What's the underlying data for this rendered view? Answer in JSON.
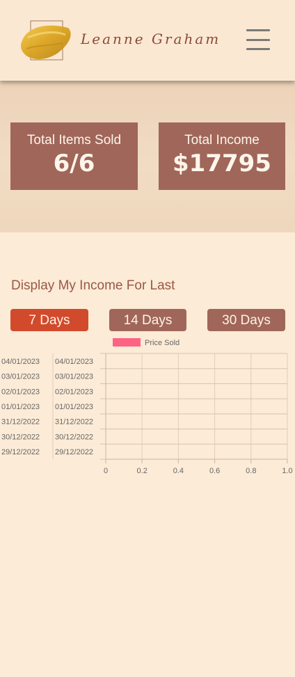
{
  "header": {
    "brand_name": "Leanne Graham",
    "menu_icon": "hamburger-menu-icon"
  },
  "stats": {
    "items_sold_label": "Total Items Sold",
    "items_sold_value": "6/6",
    "income_label": "Total Income",
    "income_value": "$17795"
  },
  "income_section": {
    "title": "Display My Income For Last",
    "buttons": [
      "7 Days",
      "14 Days",
      "30 Days"
    ],
    "active": "7 Days"
  },
  "colors": {
    "background": "#fcebd6",
    "card": "#a0665a",
    "active_button": "#d24a2c",
    "series": "#ff6384"
  },
  "chart_data": {
    "type": "bar",
    "orientation": "horizontal",
    "categories": [
      "04/01/2023",
      "03/01/2023",
      "02/01/2023",
      "01/01/2023",
      "31/12/2022",
      "30/12/2022",
      "29/12/2022"
    ],
    "series": [
      {
        "name": "Price Sold",
        "values": [
          0,
          0,
          0,
          0,
          0,
          0,
          0
        ]
      }
    ],
    "xticks": [
      "0",
      "0.2",
      "0.4",
      "0.6",
      "0.8",
      "1.0"
    ],
    "xlim": [
      0,
      1.0
    ],
    "legend": "top",
    "grid": true
  }
}
